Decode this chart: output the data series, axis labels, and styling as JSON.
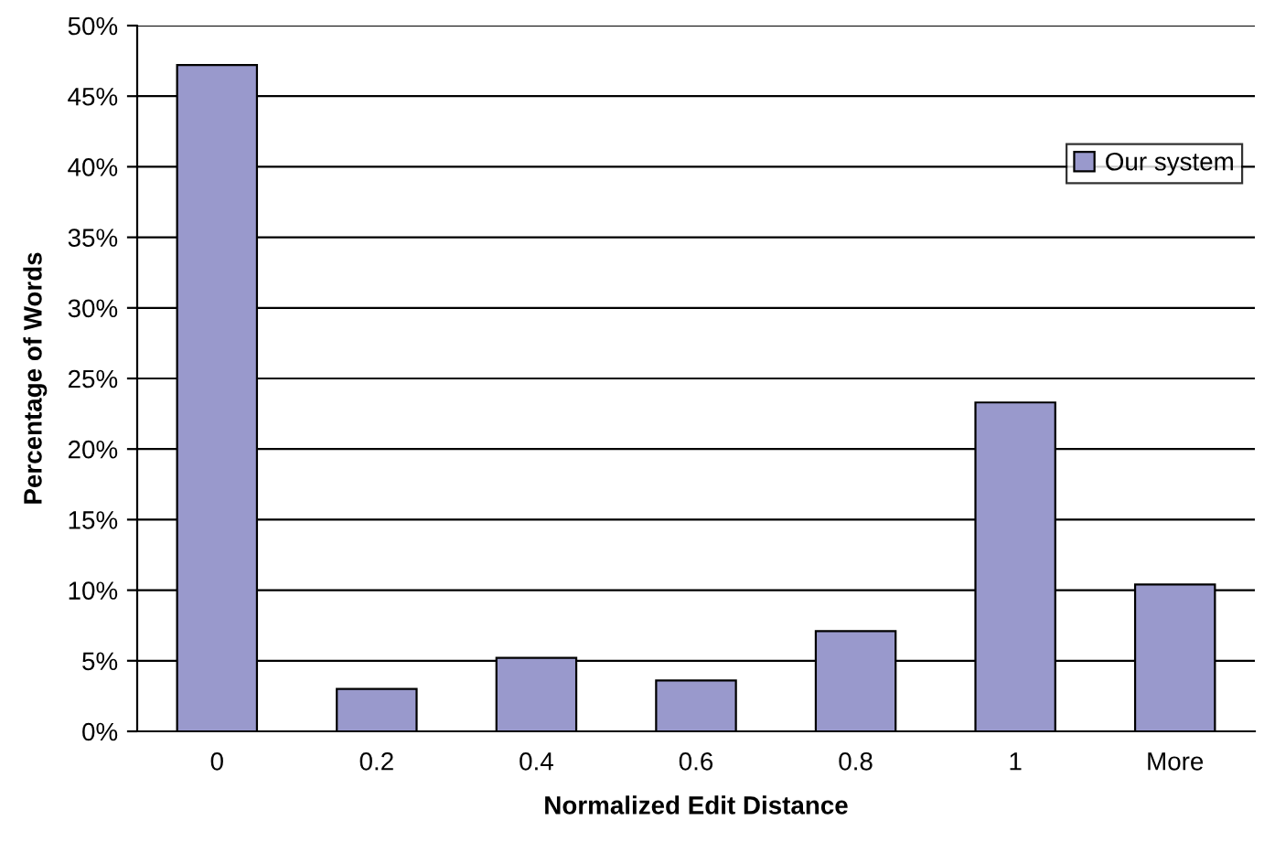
{
  "chart_data": {
    "type": "bar",
    "xlabel": "Normalized Edit Distance",
    "ylabel": "Percentage of Words",
    "categories": [
      "0",
      "0.2",
      "0.4",
      "0.6",
      "0.8",
      "1",
      "More"
    ],
    "series": [
      {
        "name": "Our system",
        "color": "#9999cc",
        "values": [
          47.2,
          3.0,
          5.2,
          3.6,
          7.1,
          23.3,
          10.4
        ]
      }
    ],
    "ylim": [
      0,
      50
    ],
    "yticks": [
      {
        "value": 0,
        "label": "0%"
      },
      {
        "value": 5,
        "label": "5%"
      },
      {
        "value": 10,
        "label": "10%"
      },
      {
        "value": 15,
        "label": "15%"
      },
      {
        "value": 20,
        "label": "20%"
      },
      {
        "value": 25,
        "label": "25%"
      },
      {
        "value": 30,
        "label": "30%"
      },
      {
        "value": 35,
        "label": "35%"
      },
      {
        "value": 40,
        "label": "40%"
      },
      {
        "value": 45,
        "label": "45%"
      },
      {
        "value": 50,
        "label": "50%"
      }
    ],
    "grid": "y",
    "legend": "top right"
  }
}
